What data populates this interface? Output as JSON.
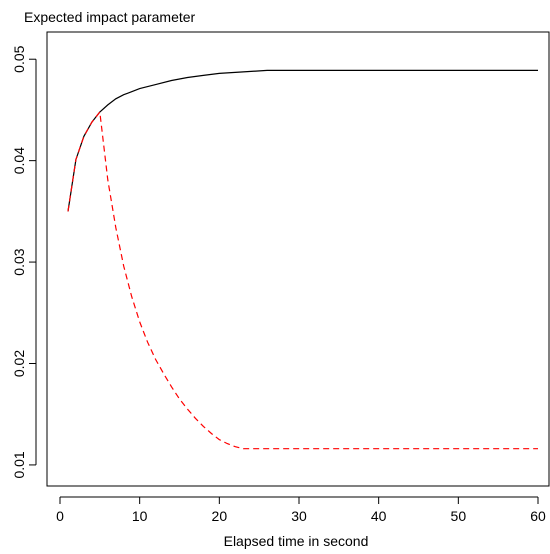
{
  "chart_data": {
    "type": "line",
    "title": "Expected impact parameter",
    "xlabel": "Elapsed time in second",
    "ylabel": "",
    "xlim": [
      0,
      60
    ],
    "ylim": [
      0.0095,
      0.0515
    ],
    "x_ticks": [
      {
        "value": 0,
        "label": "0"
      },
      {
        "value": 10,
        "label": "10"
      },
      {
        "value": 20,
        "label": "20"
      },
      {
        "value": 30,
        "label": "30"
      },
      {
        "value": 40,
        "label": "40"
      },
      {
        "value": 50,
        "label": "50"
      },
      {
        "value": 60,
        "label": "60"
      }
    ],
    "y_ticks": [
      {
        "value": 0.01,
        "label": "0.01"
      },
      {
        "value": 0.02,
        "label": "0.02"
      },
      {
        "value": 0.03,
        "label": "0.03"
      },
      {
        "value": 0.04,
        "label": "0.04"
      },
      {
        "value": 0.05,
        "label": "0.05"
      }
    ],
    "grid": false,
    "series": [
      {
        "color": "#000000",
        "dash": "solid",
        "x": [
          1,
          2,
          3,
          4,
          5,
          6,
          7,
          8,
          9,
          10,
          12,
          14,
          16,
          18,
          20,
          22,
          24,
          26,
          30,
          40,
          50,
          60
        ],
        "y": [
          0.035,
          0.0401,
          0.0424,
          0.0438,
          0.0448,
          0.0455,
          0.0461,
          0.0465,
          0.0468,
          0.0471,
          0.0475,
          0.0479,
          0.0482,
          0.0484,
          0.0486,
          0.0487,
          0.0488,
          0.0489,
          0.0489,
          0.0489,
          0.0489,
          0.0489
        ]
      },
      {
        "color": "#ff0000",
        "dash": "dashed",
        "x": [
          1,
          2,
          3,
          4,
          5,
          6,
          7,
          8,
          9,
          10,
          11,
          12,
          13,
          14,
          15,
          16,
          17,
          18,
          19,
          20,
          21,
          22,
          23,
          30,
          40,
          50,
          60
        ],
        "y": [
          0.035,
          0.0401,
          0.0424,
          0.0438,
          0.0448,
          0.0381,
          0.0334,
          0.0296,
          0.0266,
          0.0241,
          0.0221,
          0.0204,
          0.019,
          0.0177,
          0.0165,
          0.0155,
          0.0146,
          0.0138,
          0.0131,
          0.0125,
          0.0121,
          0.0118,
          0.0116,
          0.0116,
          0.0116,
          0.0116,
          0.0116
        ]
      }
    ]
  }
}
